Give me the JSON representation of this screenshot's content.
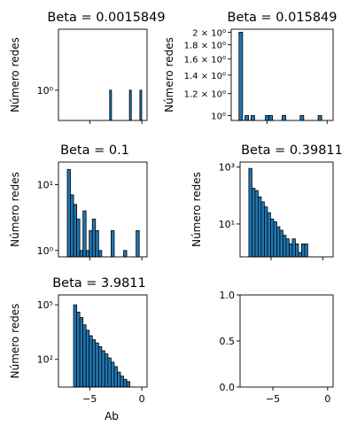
{
  "chart_data": [
    {
      "type": "bar",
      "title": "Beta = 0.0015849",
      "ylabel": "Número redes",
      "xlabel": "",
      "yscale": "log",
      "xlim": [
        -8,
        0.5
      ],
      "ylim": [
        0.45,
        5.0
      ],
      "ytick_labels": [
        {
          "value": 1,
          "label": "10⁰"
        }
      ],
      "show_xtick_labels": false,
      "bins": [
        {
          "x": -3.0,
          "value": 1
        },
        {
          "x": -1.1,
          "value": 1
        },
        {
          "x": -0.1,
          "value": 1
        }
      ],
      "bar_width": 0.18
    },
    {
      "type": "bar",
      "title": "Beta = 0.015849",
      "ylabel": "Número redes",
      "xlabel": "",
      "yscale": "log",
      "xlim": [
        -8,
        0.5
      ],
      "ylim": [
        0.96,
        2.05
      ],
      "ytick_labels": [
        {
          "value": 1.0,
          "label": "10⁰"
        },
        {
          "value": 1.2,
          "label": "1.2 × 10⁰"
        },
        {
          "value": 1.4,
          "label": "1.4 × 10⁰"
        },
        {
          "value": 1.6,
          "label": "1.6 × 10⁰"
        },
        {
          "value": 1.8,
          "label": "1.8 × 10⁰"
        },
        {
          "value": 2.0,
          "label": "2 × 10⁰"
        }
      ],
      "show_xtick_labels": false,
      "bins": [
        {
          "x": -7.2,
          "value": 2
        },
        {
          "x": -6.7,
          "value": 1
        },
        {
          "x": -6.2,
          "value": 1
        },
        {
          "x": -5.0,
          "value": 1
        },
        {
          "x": -4.7,
          "value": 1
        },
        {
          "x": -3.6,
          "value": 1
        },
        {
          "x": -2.1,
          "value": 1
        },
        {
          "x": -0.6,
          "value": 1
        }
      ],
      "bar_width": 0.3
    },
    {
      "type": "bar",
      "title": "Beta = 0.1",
      "ylabel": "Número redes",
      "xlabel": "",
      "yscale": "log",
      "xlim": [
        -8,
        0.5
      ],
      "ylim": [
        0.8,
        22
      ],
      "ytick_labels": [
        {
          "value": 1,
          "label": "10⁰"
        },
        {
          "value": 10,
          "label": "10¹"
        }
      ],
      "show_xtick_labels": false,
      "bins": [
        {
          "x": -7.0,
          "value": 17
        },
        {
          "x": -6.7,
          "value": 7
        },
        {
          "x": -6.4,
          "value": 5
        },
        {
          "x": -6.1,
          "value": 3
        },
        {
          "x": -5.8,
          "value": 1
        },
        {
          "x": -5.5,
          "value": 4
        },
        {
          "x": -5.2,
          "value": 1
        },
        {
          "x": -4.9,
          "value": 2
        },
        {
          "x": -4.6,
          "value": 3
        },
        {
          "x": -4.3,
          "value": 2
        },
        {
          "x": -4.0,
          "value": 1
        },
        {
          "x": -2.8,
          "value": 2
        },
        {
          "x": -1.6,
          "value": 1
        },
        {
          "x": -0.4,
          "value": 2
        }
      ],
      "bar_width": 0.3
    },
    {
      "type": "bar",
      "title": "Beta = 0.39811",
      "ylabel": "Número redes",
      "xlabel": "",
      "yscale": "log",
      "xlim": [
        -8,
        1
      ],
      "ylim": [
        0.7,
        1500
      ],
      "ytick_labels": [
        {
          "value": 10,
          "label": "10¹"
        },
        {
          "value": 1000,
          "label": "10³"
        }
      ],
      "show_xtick_labels": false,
      "bins": [
        {
          "x": -7.0,
          "value": 900
        },
        {
          "x": -6.7,
          "value": 180
        },
        {
          "x": -6.4,
          "value": 150
        },
        {
          "x": -6.1,
          "value": 90
        },
        {
          "x": -5.8,
          "value": 60
        },
        {
          "x": -5.5,
          "value": 40
        },
        {
          "x": -5.2,
          "value": 25
        },
        {
          "x": -4.9,
          "value": 15
        },
        {
          "x": -4.6,
          "value": 12
        },
        {
          "x": -4.3,
          "value": 8
        },
        {
          "x": -4.0,
          "value": 6
        },
        {
          "x": -3.7,
          "value": 4
        },
        {
          "x": -3.4,
          "value": 3
        },
        {
          "x": -3.1,
          "value": 2
        },
        {
          "x": -2.8,
          "value": 3
        },
        {
          "x": -2.5,
          "value": 2
        },
        {
          "x": -2.2,
          "value": 1
        },
        {
          "x": -1.9,
          "value": 2
        },
        {
          "x": -1.6,
          "value": 2
        }
      ],
      "bar_width": 0.3
    },
    {
      "type": "bar",
      "title": "Beta = 3.9811",
      "ylabel": "Número redes",
      "xlabel": "Ab",
      "yscale": "log",
      "xlim": [
        -8,
        0.5
      ],
      "ylim": [
        3,
        350000
      ],
      "ytick_labels": [
        {
          "value": 100,
          "label": "10²"
        },
        {
          "value": 100000,
          "label": "10⁵"
        }
      ],
      "xticks": [
        -5,
        0
      ],
      "show_xtick_labels": true,
      "bins": [
        {
          "x": -6.4,
          "value": 100000
        },
        {
          "x": -6.1,
          "value": 40000
        },
        {
          "x": -5.8,
          "value": 20000
        },
        {
          "x": -5.5,
          "value": 8000
        },
        {
          "x": -5.2,
          "value": 4000
        },
        {
          "x": -4.9,
          "value": 2000
        },
        {
          "x": -4.6,
          "value": 1200
        },
        {
          "x": -4.3,
          "value": 800
        },
        {
          "x": -4.0,
          "value": 500
        },
        {
          "x": -3.7,
          "value": 300
        },
        {
          "x": -3.4,
          "value": 200
        },
        {
          "x": -3.1,
          "value": 120
        },
        {
          "x": -2.8,
          "value": 70
        },
        {
          "x": -2.5,
          "value": 40
        },
        {
          "x": -2.2,
          "value": 20
        },
        {
          "x": -1.9,
          "value": 12
        },
        {
          "x": -1.6,
          "value": 8
        },
        {
          "x": -1.3,
          "value": 6
        }
      ],
      "bar_width": 0.3
    },
    {
      "type": "bar",
      "title": "",
      "ylabel": "",
      "xlabel": "",
      "yscale": "linear",
      "xlim": [
        -8,
        0.5
      ],
      "ylim": [
        0,
        1
      ],
      "ytick_labels": [
        {
          "value": 0.0,
          "label": "0.0"
        },
        {
          "value": 0.5,
          "label": "0.5"
        },
        {
          "value": 1.0,
          "label": "1.0"
        }
      ],
      "xticks": [
        -5,
        0
      ],
      "show_xtick_labels": true,
      "bins": [],
      "bar_width": 0
    }
  ],
  "colors": {
    "bar_fill": "#1f77b4",
    "bar_edge": "#000000",
    "axes": "#000000"
  }
}
